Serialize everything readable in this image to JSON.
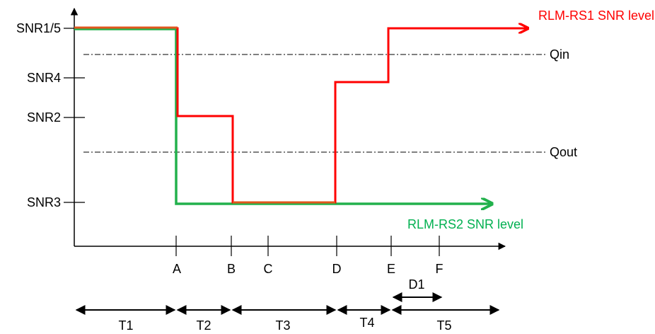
{
  "colors": {
    "rs1": "#ff0000",
    "rs1_overlap": "#e0561c",
    "rs2": "#22b14c",
    "axis": "#000000"
  },
  "y_levels": {
    "snr15": "SNR1/5",
    "snr4": "SNR4",
    "snr2": "SNR2",
    "snr3": "SNR3"
  },
  "thresholds": {
    "qin": "Qin",
    "qout": "Qout"
  },
  "series": {
    "rs1": "RLM-RS1 SNR level",
    "rs2": "RLM-RS2 SNR level"
  },
  "x_ticks": {
    "a": "A",
    "b": "B",
    "c": "C",
    "d": "D",
    "e": "E",
    "f": "F"
  },
  "intervals": {
    "d1": "D1",
    "t1": "T1",
    "t2": "T2",
    "t3": "T3",
    "t4": "T4",
    "t5": "T5"
  }
}
